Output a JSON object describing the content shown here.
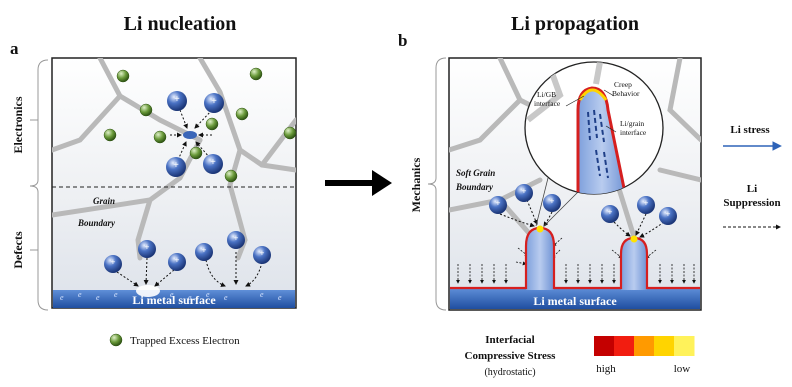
{
  "panel_a": {
    "letter": "a",
    "title": "Li nucleation",
    "side_top": "Electronics",
    "side_bottom": "Defects",
    "grain_label_1": "Grain",
    "grain_label_2": "Boundary",
    "surface": "Li metal surface",
    "legend": "Trapped Excess Electron",
    "surface_marks": [
      "e",
      "e",
      "e",
      "e",
      "e",
      "e",
      "e",
      "e",
      "e",
      "e",
      "e",
      "e",
      "e",
      "e",
      "e",
      "e",
      "e"
    ]
  },
  "panel_b": {
    "letter": "b",
    "title": "Li propagation",
    "side": "Mechanics",
    "soft_grain_1": "Soft Grain",
    "soft_grain_2": "Boundary",
    "inset_gb_1": "Li/GB",
    "inset_gb_2": "interface",
    "creep_1": "Creep",
    "creep_2": "Behavior",
    "grain_if_1": "Li/grain",
    "grain_if_2": "interface",
    "surface": "Li metal surface"
  },
  "legend_right": {
    "stress": "Li stress",
    "suppression_1": "Li",
    "suppression_2": "Suppression"
  },
  "stress_bar": {
    "title_1": "Interfacial",
    "title_2": "Compressive Stress",
    "title_3": "(hydrostatic)",
    "high": "high",
    "low": "low",
    "colors": [
      "#c40000",
      "#f21d10",
      "#ff9a00",
      "#ffd400",
      "#fff25a"
    ]
  },
  "ion_symbol": "+",
  "colors": {
    "surface": "#2e63b8",
    "boundary": "#b9b9b9",
    "electron": "#6a9a3a",
    "interface": "#d61f1f"
  }
}
